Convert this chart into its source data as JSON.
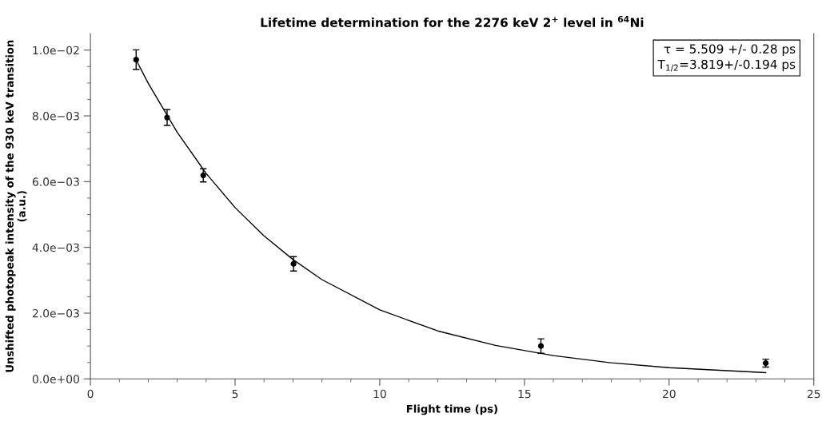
{
  "chart_data": {
    "type": "scatter",
    "title": "Lifetime determination for the 2276 keV 2$^{+}$ level in $^{64}$Ni",
    "xlabel": "Flight time (ps)",
    "ylabel": "Unshifted photopeak intensity of the 930 keV transition\n(a.u.)",
    "annotations": [
      "τ = 5.509 +/- 0.28 ps\nT$_{1/2}$=3.819+/-0.194 ps"
    ],
    "series": [
      {
        "color": "#000000",
        "marker": "circle",
        "x": [
          1.58,
          2.65,
          3.9,
          7.02,
          15.57,
          23.34
        ],
        "values": [
          0.00971,
          0.00795,
          0.00619,
          0.0035,
          0.001,
          0.00048
        ],
        "errors": [
          0.0003,
          0.00024,
          0.0002,
          0.00022,
          0.00022,
          0.00012
        ]
      },
      {
        "type": "line",
        "color": "#000000",
        "x": [
          1.58,
          2,
          3,
          4,
          5,
          6,
          7,
          8,
          10,
          12,
          14,
          16,
          18,
          20,
          23.34
        ],
        "values": [
          0.0097,
          0.00899,
          0.0075,
          0.00625,
          0.00521,
          0.00435,
          0.00363,
          0.00302,
          0.0021,
          0.00146,
          0.00102,
          0.00071,
          0.00049,
          0.00034,
          0.00019
        ]
      }
    ],
    "xlim": [
      0,
      25
    ],
    "xticks": [
      0,
      {
        "value": 1,
        "label": null
      },
      {
        "value": 2,
        "label": null
      },
      {
        "value": 3,
        "label": null
      },
      {
        "value": 4,
        "label": null
      },
      5,
      {
        "value": 6,
        "label": null
      },
      {
        "value": 7,
        "label": null
      },
      {
        "value": 8,
        "label": null
      },
      {
        "value": 9,
        "label": null
      },
      10,
      {
        "value": 11,
        "label": null
      },
      {
        "value": 12,
        "label": null
      },
      {
        "value": 13,
        "label": null
      },
      {
        "value": 14,
        "label": null
      },
      15,
      {
        "value": 16,
        "label": null
      },
      {
        "value": 17,
        "label": null
      },
      {
        "value": 18,
        "label": null
      },
      {
        "value": 19,
        "label": null
      },
      20,
      {
        "value": 21,
        "label": null
      },
      {
        "value": 22,
        "label": null
      },
      {
        "value": 23,
        "label": null
      },
      {
        "value": 24,
        "label": null
      },
      25
    ],
    "ylim": [
      0,
      0.0105
    ],
    "yticks": [
      {
        "value": 0,
        "label": "0.0e+00"
      },
      {
        "value": 0.0005,
        "label": null
      },
      {
        "value": 0.001,
        "label": null
      },
      {
        "value": 0.0015,
        "label": null
      },
      {
        "value": 0.002,
        "label": "2.0e−03"
      },
      {
        "value": 0.0025,
        "label": null
      },
      {
        "value": 0.003,
        "label": null
      },
      {
        "value": 0.0035,
        "label": null
      },
      {
        "value": 0.004,
        "label": "4.0e−03"
      },
      {
        "value": 0.0045,
        "label": null
      },
      {
        "value": 0.005,
        "label": null
      },
      {
        "value": 0.0055,
        "label": null
      },
      {
        "value": 0.006,
        "label": "6.0e−03"
      },
      {
        "value": 0.0065,
        "label": null
      },
      {
        "value": 0.007,
        "label": null
      },
      {
        "value": 0.0075,
        "label": null
      },
      {
        "value": 0.008,
        "label": "8.0e−03"
      },
      {
        "value": 0.0085,
        "label": null
      },
      {
        "value": 0.009,
        "label": null
      },
      {
        "value": 0.0095,
        "label": null
      },
      {
        "value": 0.01,
        "label": "1.0e−02"
      }
    ],
    "grid": false
  }
}
